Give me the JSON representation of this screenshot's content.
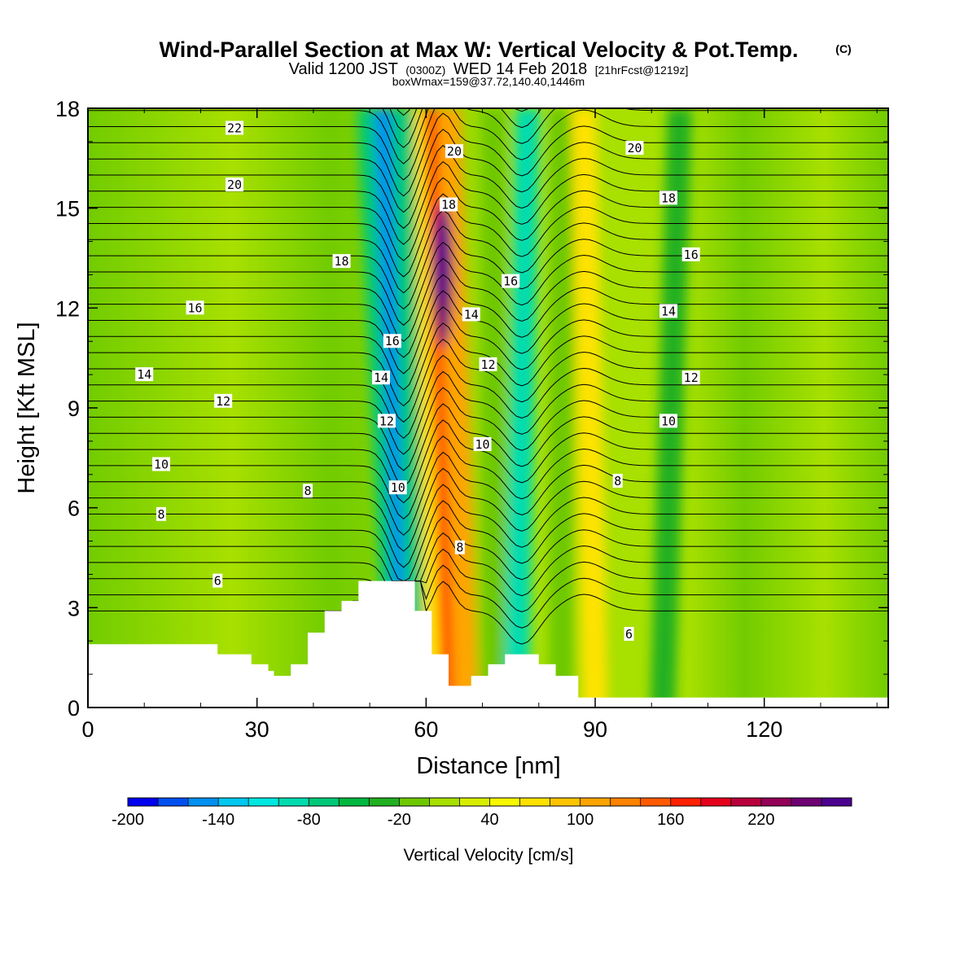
{
  "chart_data": {
    "type": "heatmap",
    "title": "Wind-Parallel Section at Max W: Vertical Velocity & Pot.Temp.",
    "title_mark": "(C)",
    "subtitle": {
      "valid_prefix": "Valid 1200 JST",
      "utc": "(0300Z)",
      "valid_date": "WED 14 Feb 2018",
      "forecast": "[21hrFcst@1219z]"
    },
    "info_line": "boxWmax=159@37.72,140.40,1446m",
    "xlabel": "Distance [nm]",
    "ylabel": "Height [Kft MSL]",
    "xlim": [
      0,
      142
    ],
    "ylim": [
      0,
      18
    ],
    "x_ticks": [
      "0",
      "30",
      "60",
      "90",
      "120"
    ],
    "y_ticks": [
      "0",
      "3",
      "6",
      "9",
      "12",
      "15",
      "18"
    ],
    "colorbar": {
      "label": "Vertical Velocity [cm/s]",
      "tick_labels": [
        "-200",
        "-140",
        "-80",
        "-20",
        "40",
        "100",
        "160",
        "220"
      ],
      "levels": [
        -200,
        -180,
        -160,
        -140,
        -120,
        -100,
        -80,
        -60,
        -40,
        -20,
        0,
        20,
        40,
        60,
        80,
        100,
        120,
        140,
        160,
        180,
        200,
        220,
        240,
        260
      ],
      "colors": [
        "#0000f0",
        "#0050f0",
        "#0090f0",
        "#00c8f0",
        "#00e8e0",
        "#00dcb0",
        "#00c878",
        "#00b840",
        "#20b020",
        "#6ec800",
        "#a8e000",
        "#d8ee00",
        "#f8f800",
        "#ffe200",
        "#ffc400",
        "#ffa400",
        "#ff8200",
        "#ff5a00",
        "#ff2000",
        "#e6001c",
        "#b8003c",
        "#920058",
        "#6e0074",
        "#4c0090"
      ]
    },
    "terrain_kft": {
      "x": [
        0,
        23,
        23,
        29,
        29,
        32,
        32,
        33,
        33,
        36,
        36,
        39,
        39,
        42,
        42,
        45,
        45,
        48,
        48,
        58,
        58,
        61,
        61,
        64,
        64,
        68,
        68,
        71,
        71,
        74,
        74,
        80,
        80,
        83,
        83,
        87,
        87,
        142
      ],
      "y": [
        1.9,
        1.9,
        1.6,
        1.6,
        1.3,
        1.3,
        1.1,
        1.1,
        0.95,
        0.95,
        1.3,
        1.3,
        2.25,
        2.25,
        2.9,
        2.9,
        3.2,
        3.2,
        3.8,
        3.8,
        2.9,
        2.9,
        1.6,
        1.6,
        0.65,
        0.65,
        0.95,
        0.95,
        1.3,
        1.3,
        1.6,
        1.6,
        1.3,
        1.3,
        0.95,
        0.95,
        0.3,
        0.3
      ]
    },
    "vertical_velocity_bands": [
      {
        "x_bottom": 55,
        "x_top": 50,
        "w": -80
      },
      {
        "x_bottom": 57,
        "x_top": 53,
        "w": -160
      },
      {
        "x_bottom": 59,
        "x_top": 56,
        "w": -80
      },
      {
        "x_bottom": 62,
        "x_top": 60,
        "w": 60
      },
      {
        "x_bottom": 65,
        "x_top": 62,
        "w": 160
      },
      {
        "x_bottom": 67,
        "x_top": 64,
        "w": 100
      },
      {
        "x_bottom": 72,
        "x_top": 72,
        "w": -20
      },
      {
        "x_bottom": 76,
        "x_top": 78,
        "w": -100
      },
      {
        "x_bottom": 84,
        "x_top": 84,
        "w": -20
      },
      {
        "x_bottom": 90,
        "x_top": 88,
        "w": 60
      },
      {
        "x_bottom": 102,
        "x_top": 105,
        "w": -40
      }
    ],
    "max_w": {
      "x": 63,
      "height_kft": 13,
      "w": 240
    },
    "theta_isotherms_C": [
      6,
      8,
      10,
      12,
      14,
      16,
      18,
      20,
      22
    ],
    "contour_labels": [
      {
        "text": "22",
        "x": 26,
        "y": 17.4
      },
      {
        "text": "20",
        "x": 26,
        "y": 15.7
      },
      {
        "text": "18",
        "x": 45,
        "y": 13.4
      },
      {
        "text": "16",
        "x": 19,
        "y": 12.0
      },
      {
        "text": "14",
        "x": 10,
        "y": 10.0
      },
      {
        "text": "12",
        "x": 24,
        "y": 9.2
      },
      {
        "text": "10",
        "x": 13,
        "y": 7.3
      },
      {
        "text": "8",
        "x": 39,
        "y": 6.5
      },
      {
        "text": "8",
        "x": 13,
        "y": 5.8
      },
      {
        "text": "6",
        "x": 23,
        "y": 3.8
      },
      {
        "text": "16",
        "x": 54,
        "y": 11.0
      },
      {
        "text": "14",
        "x": 52,
        "y": 9.9
      },
      {
        "text": "12",
        "x": 53,
        "y": 8.6
      },
      {
        "text": "10",
        "x": 55,
        "y": 6.6
      },
      {
        "text": "20",
        "x": 65,
        "y": 16.7
      },
      {
        "text": "18",
        "x": 64,
        "y": 15.1
      },
      {
        "text": "14",
        "x": 68,
        "y": 11.8
      },
      {
        "text": "12",
        "x": 71,
        "y": 10.3
      },
      {
        "text": "10",
        "x": 70,
        "y": 7.9
      },
      {
        "text": "8",
        "x": 66,
        "y": 4.8
      },
      {
        "text": "16",
        "x": 75,
        "y": 12.8
      },
      {
        "text": "20",
        "x": 97,
        "y": 16.8
      },
      {
        "text": "18",
        "x": 103,
        "y": 15.3
      },
      {
        "text": "16",
        "x": 107,
        "y": 13.6
      },
      {
        "text": "14",
        "x": 103,
        "y": 11.9
      },
      {
        "text": "12",
        "x": 107,
        "y": 9.9
      },
      {
        "text": "10",
        "x": 103,
        "y": 8.6
      },
      {
        "text": "8",
        "x": 94,
        "y": 6.8
      },
      {
        "text": "6",
        "x": 96,
        "y": 2.2
      }
    ]
  }
}
